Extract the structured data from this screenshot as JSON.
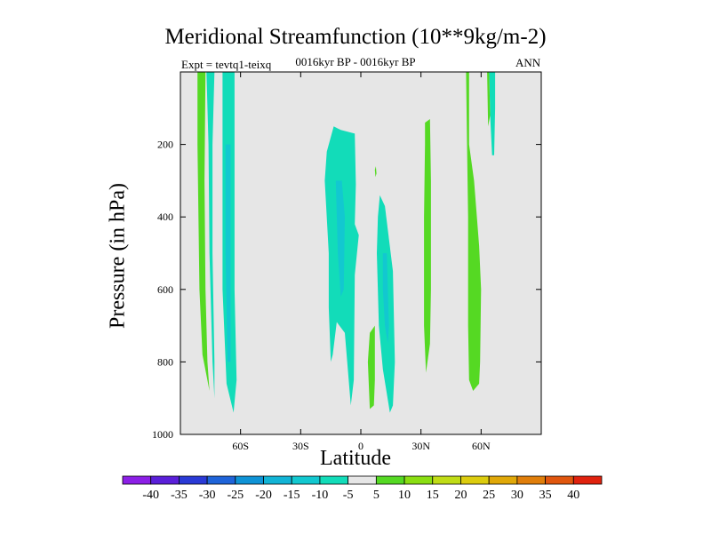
{
  "chart_data": {
    "type": "contour",
    "title": "Meridional Streamfunction (10**9kg/m-2)",
    "subtitle": "0016kyr BP - 0016kyr BP",
    "left_label": "Expt = tevtq1-teixq",
    "right_label": "ANN",
    "xlabel": "Latitude",
    "ylabel": "Pressure (in hPa)",
    "xlim": [
      -90,
      90
    ],
    "ylim": [
      1000,
      0
    ],
    "x_ticks": [
      {
        "value": -60,
        "label": "60S"
      },
      {
        "value": -30,
        "label": "30S"
      },
      {
        "value": 0,
        "label": "0"
      },
      {
        "value": 30,
        "label": "30N"
      },
      {
        "value": 60,
        "label": "60N"
      }
    ],
    "y_ticks": [
      {
        "value": 200,
        "label": "200"
      },
      {
        "value": 400,
        "label": "400"
      },
      {
        "value": 600,
        "label": "600"
      },
      {
        "value": 800,
        "label": "800"
      },
      {
        "value": 1000,
        "label": "1000"
      }
    ],
    "background_color": "#e6e6e6",
    "colorbar": {
      "levels": [
        "-40",
        "-35",
        "-30",
        "-25",
        "-20",
        "-15",
        "-10",
        "-5",
        "5",
        "10",
        "15",
        "20",
        "25",
        "30",
        "35",
        "40"
      ],
      "colors": [
        "#8c1fe6",
        "#5a1fd9",
        "#2a3ad6",
        "#1f64d9",
        "#0f93d6",
        "#12b4d6",
        "#12c8d0",
        "#12dcb9",
        "#e6e6e6",
        "#55d923",
        "#8ade12",
        "#c0dc16",
        "#dccc0e",
        "#e0a808",
        "#e07e0a",
        "#e0560e",
        "#e0220e"
      ]
    },
    "regions": [
      {
        "name": "-10 to -5",
        "color": "#12dcb9",
        "points": [
          [
            -77,
            0
          ],
          [
            -73,
            0
          ],
          [
            -74,
            200
          ],
          [
            -74,
            500
          ],
          [
            -73,
            800
          ],
          [
            -73,
            900
          ],
          [
            -74,
            800
          ],
          [
            -75.5,
            500
          ],
          [
            -76,
            200
          ]
        ]
      },
      {
        "name": "5 to 10",
        "color": "#55d923",
        "points": [
          [
            -81.5,
            0
          ],
          [
            -77.5,
            0
          ],
          [
            -78,
            300
          ],
          [
            -77.5,
            600
          ],
          [
            -76.5,
            800
          ],
          [
            -75.5,
            880
          ],
          [
            -79,
            780
          ],
          [
            -80.5,
            600
          ],
          [
            -81.5,
            200
          ]
        ]
      },
      {
        "name": "-10 to -5",
        "color": "#12dcb9",
        "points": [
          [
            -69,
            0
          ],
          [
            -63,
            0
          ],
          [
            -63,
            300
          ],
          [
            -63,
            600
          ],
          [
            -62,
            850
          ],
          [
            -63.5,
            940
          ],
          [
            -67,
            860
          ],
          [
            -69,
            600
          ],
          [
            -69,
            300
          ]
        ]
      },
      {
        "name": "-15 to -10",
        "color": "#12c8d0",
        "points": [
          [
            -67.5,
            200
          ],
          [
            -65,
            200
          ],
          [
            -65,
            600
          ],
          [
            -65,
            800
          ],
          [
            -66.5,
            800
          ],
          [
            -67.5,
            500
          ]
        ]
      },
      {
        "name": "-10 to -5",
        "color": "#12dcb9",
        "points": [
          [
            -17,
            220
          ],
          [
            -13.5,
            150
          ],
          [
            -10,
            160
          ],
          [
            -3,
            170
          ],
          [
            -2.5,
            310
          ],
          [
            -3,
            420
          ],
          [
            -1,
            450
          ],
          [
            -3,
            560
          ],
          [
            -3.5,
            850
          ],
          [
            -5,
            920
          ],
          [
            -8,
            720
          ],
          [
            -12,
            690
          ],
          [
            -14,
            780
          ],
          [
            -15,
            800
          ],
          [
            -16,
            650
          ],
          [
            -16,
            500
          ],
          [
            -18,
            300
          ]
        ]
      },
      {
        "name": "-15 to -10",
        "color": "#12c8d0",
        "points": [
          [
            -12.5,
            300
          ],
          [
            -9.5,
            300
          ],
          [
            -8,
            400
          ],
          [
            -8.5,
            600
          ],
          [
            -10,
            620
          ],
          [
            -11.5,
            500
          ]
        ]
      },
      {
        "name": "-10 to -5",
        "color": "#12dcb9",
        "points": [
          [
            9.5,
            340
          ],
          [
            12,
            370
          ],
          [
            16,
            550
          ],
          [
            17,
            800
          ],
          [
            16,
            920
          ],
          [
            14.5,
            940
          ],
          [
            11,
            820
          ],
          [
            9,
            700
          ],
          [
            8,
            500
          ],
          [
            8.5,
            400
          ]
        ]
      },
      {
        "name": "-15 to -10",
        "color": "#12c8d0",
        "points": [
          [
            11,
            500
          ],
          [
            13,
            500
          ],
          [
            14,
            700
          ],
          [
            13.5,
            750
          ],
          [
            12,
            700
          ],
          [
            11,
            600
          ]
        ]
      },
      {
        "name": "5 to 10",
        "color": "#55d923",
        "points": [
          [
            4.5,
            720
          ],
          [
            7,
            700
          ],
          [
            7,
            850
          ],
          [
            6.5,
            920
          ],
          [
            4.5,
            930
          ],
          [
            3.5,
            800
          ]
        ]
      },
      {
        "name": "5 to 10",
        "color": "#55d923",
        "points": [
          [
            7,
            270
          ],
          [
            7.5,
            260
          ],
          [
            7.8,
            280
          ],
          [
            7.3,
            290
          ]
        ]
      },
      {
        "name": "5 to 10",
        "color": "#55d923",
        "points": [
          [
            32,
            140
          ],
          [
            34.5,
            130
          ],
          [
            35,
            300
          ],
          [
            35,
            600
          ],
          [
            34.5,
            750
          ],
          [
            32.5,
            830
          ],
          [
            31.5,
            700
          ],
          [
            31.5,
            400
          ],
          [
            32,
            200
          ]
        ]
      },
      {
        "name": "5 to 10",
        "color": "#55d923",
        "points": [
          [
            52.5,
            0
          ],
          [
            54,
            0
          ],
          [
            54,
            200
          ],
          [
            56.5,
            300
          ],
          [
            59,
            480
          ],
          [
            60,
            600
          ],
          [
            59.5,
            800
          ],
          [
            59,
            860
          ],
          [
            56,
            880
          ],
          [
            54,
            850
          ],
          [
            53.5,
            700
          ],
          [
            53.5,
            400
          ],
          [
            53,
            200
          ]
        ]
      },
      {
        "name": "-10 to -5",
        "color": "#12dcb9",
        "points": [
          [
            64,
            0
          ],
          [
            67,
            0
          ],
          [
            67,
            100
          ],
          [
            66.5,
            230
          ],
          [
            65.5,
            230
          ],
          [
            64.5,
            120
          ]
        ]
      },
      {
        "name": "5 to 10",
        "color": "#55d923",
        "points": [
          [
            63,
            0
          ],
          [
            64,
            0
          ],
          [
            64.5,
            120
          ],
          [
            63.5,
            150
          ]
        ]
      }
    ]
  }
}
